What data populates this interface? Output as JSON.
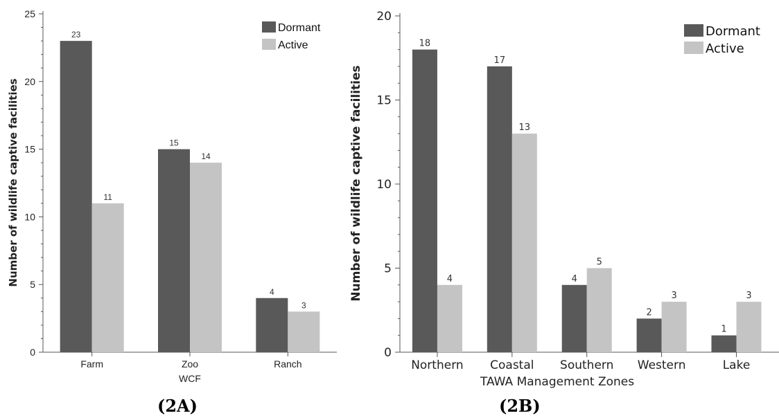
{
  "colors": {
    "dormant": "#595959",
    "active": "#c4c4c4",
    "axis": "#555555"
  },
  "chart_data": [
    {
      "type": "bar",
      "panel_label": "(2A)",
      "xlabel": "WCF",
      "ylabel": "Number of wildlife captive facilities",
      "categories": [
        "Farm",
        "Zoo",
        "Ranch"
      ],
      "series": [
        {
          "name": "Dormant",
          "values": [
            23,
            15,
            4
          ]
        },
        {
          "name": "Active",
          "values": [
            11,
            14,
            3
          ]
        }
      ],
      "ylim": [
        0,
        25
      ],
      "yticks": [
        0,
        5,
        10,
        15,
        20,
        25
      ],
      "grid": false,
      "legend": "top-right",
      "data_labels": true
    },
    {
      "type": "bar",
      "panel_label": "(2B)",
      "xlabel": "TAWA Management Zones",
      "ylabel": "Number of wildlife captive facilities",
      "categories": [
        "Northern",
        "Coastal",
        "Southern",
        "Western",
        "Lake"
      ],
      "series": [
        {
          "name": "Dormant",
          "values": [
            18,
            17,
            4,
            2,
            1
          ]
        },
        {
          "name": "Active",
          "values": [
            4,
            13,
            5,
            3,
            3
          ]
        }
      ],
      "ylim": [
        0,
        20
      ],
      "yticks": [
        0,
        5,
        10,
        15,
        20
      ],
      "grid": false,
      "legend": "top-right",
      "data_labels": true
    }
  ]
}
